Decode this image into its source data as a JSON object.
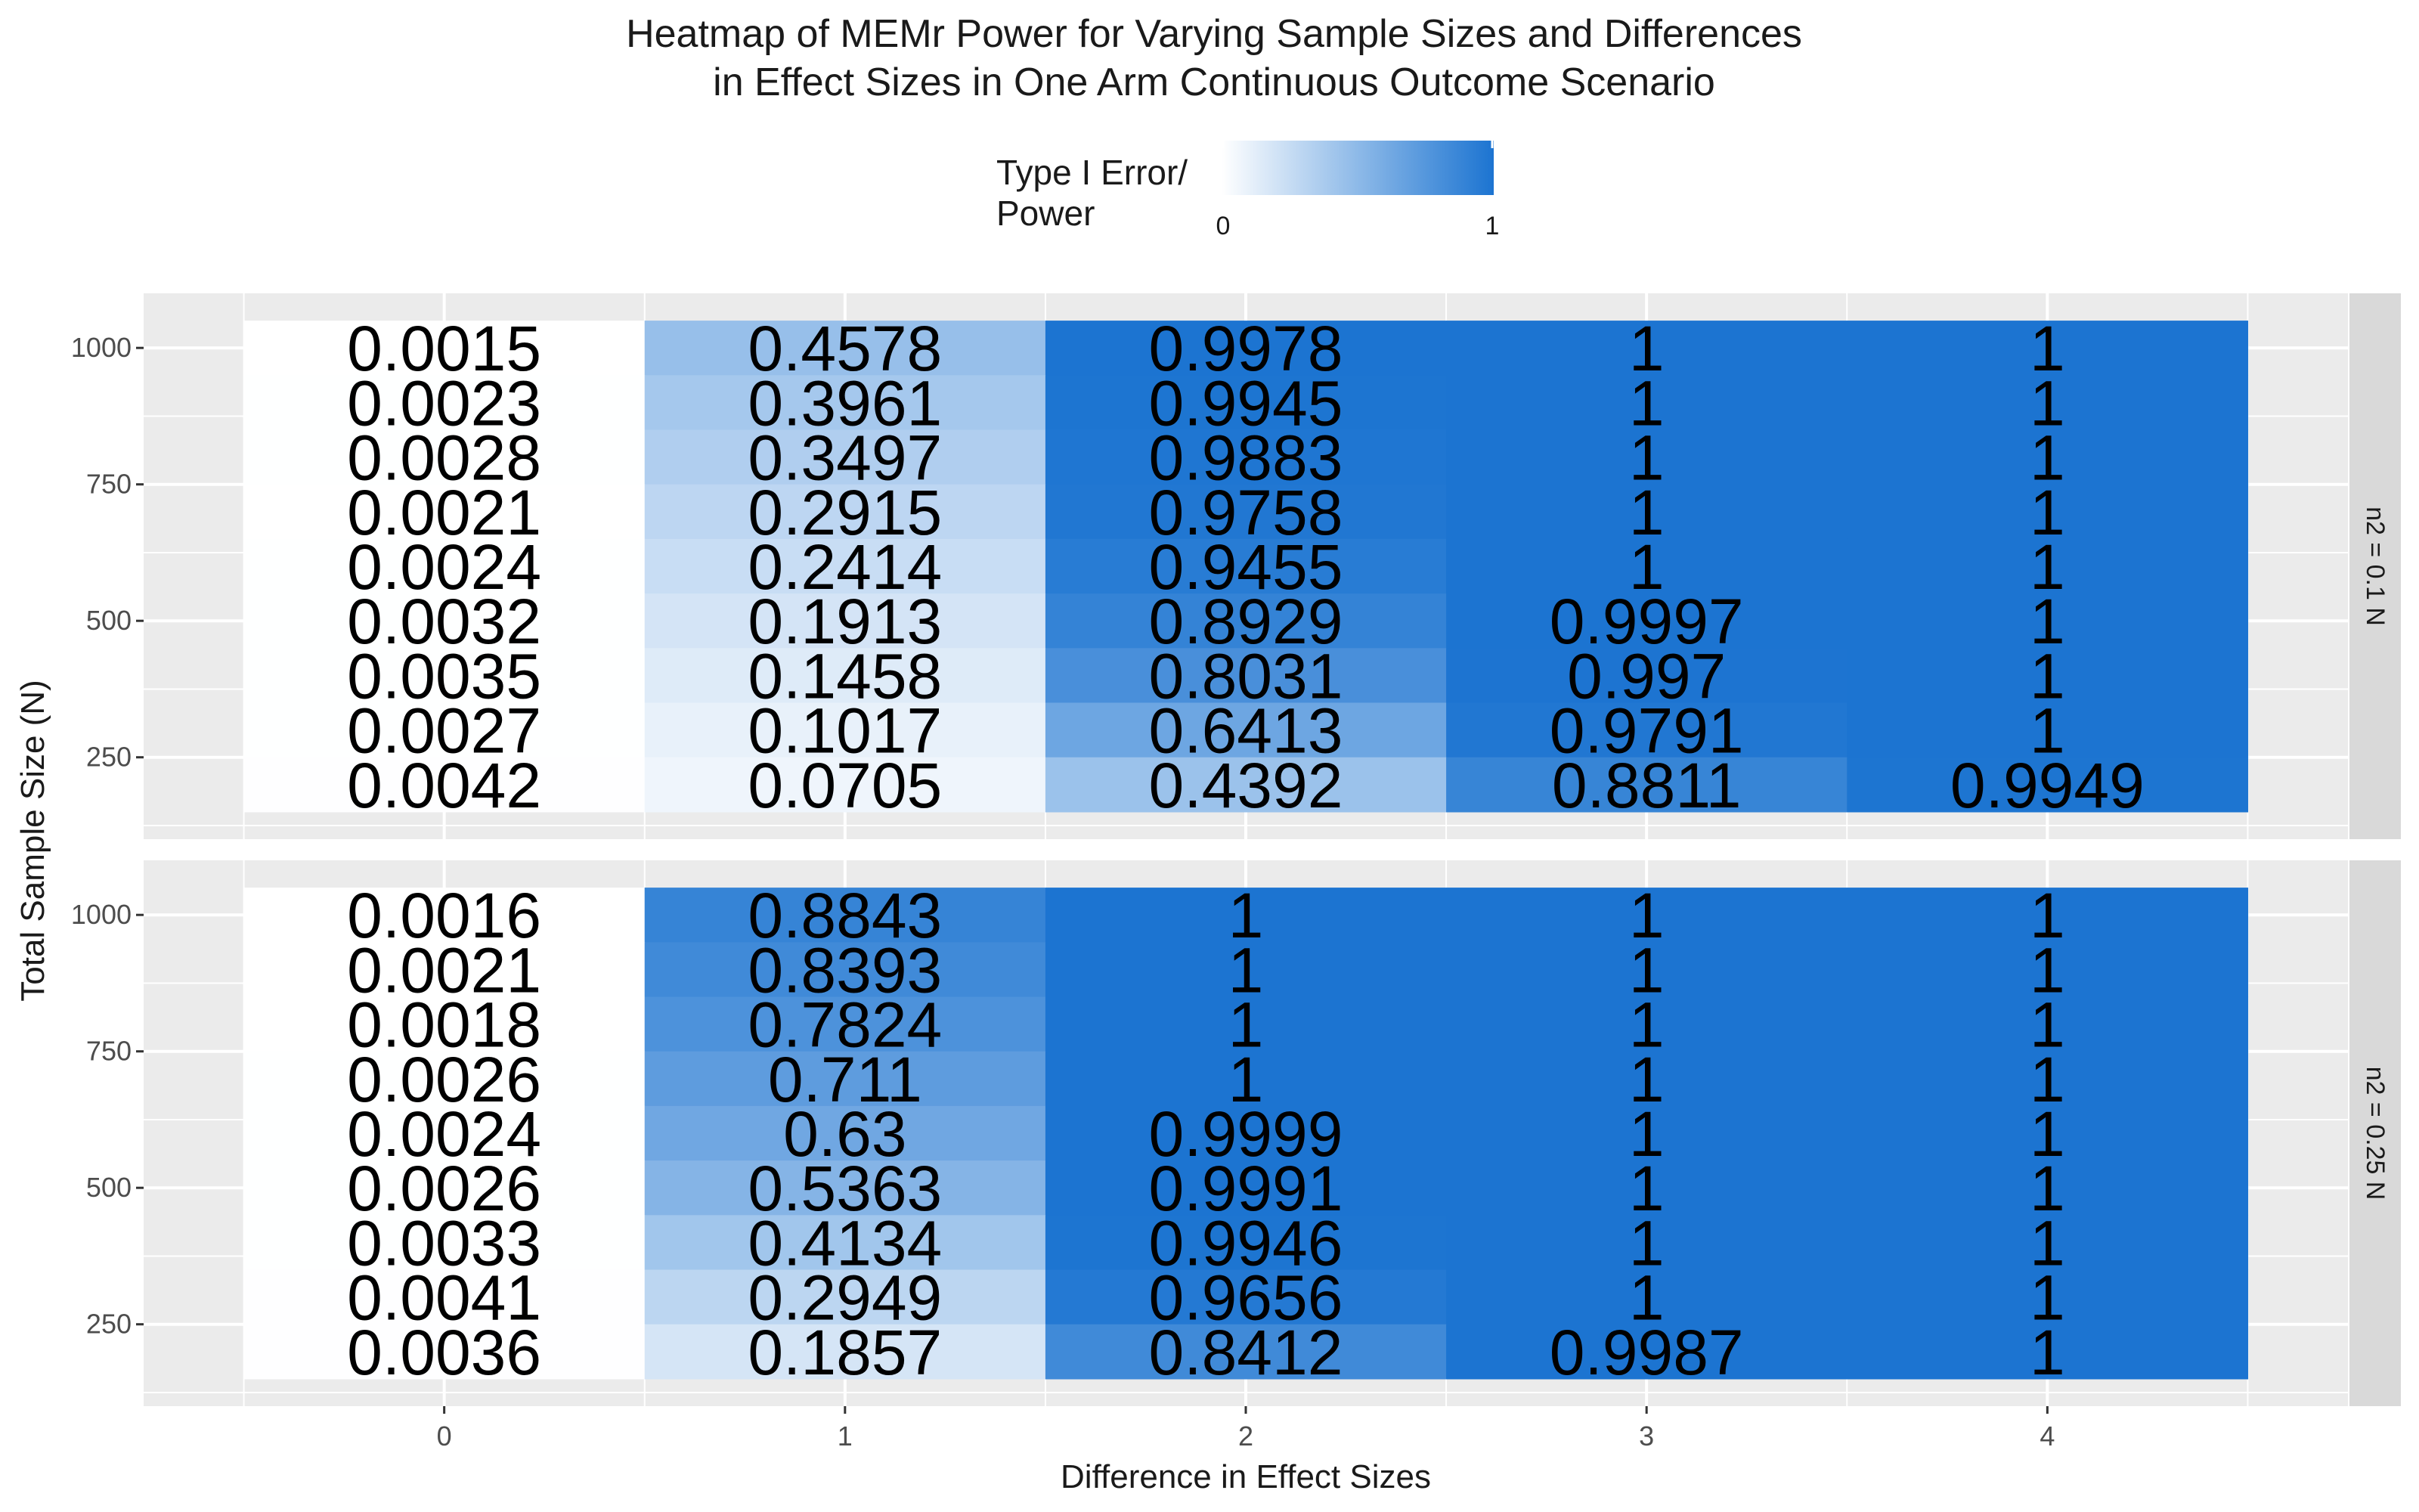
{
  "title": {
    "line1": "Heatmap of MEMr Power for Varying Sample Sizes and Differences",
    "line2": "in Effect Sizes in One Arm Continuous Outcome Scenario"
  },
  "legend": {
    "title_line1": "Type I Error/",
    "title_line2": "Power",
    "min_label": "0",
    "max_label": "1",
    "low_color": "#ffffff",
    "high_color": "#1c74d1"
  },
  "axes": {
    "xlabel": "Difference in Effect Sizes",
    "ylabel": "Total Sample Size (N)",
    "x_ticks": [
      "0",
      "1",
      "2",
      "3",
      "4"
    ],
    "y_ticks": [
      "250",
      "500",
      "750",
      "1000"
    ]
  },
  "colors": {
    "panel_bg": "#ebebeb",
    "grid": "#ffffff",
    "strip_bg": "#d9d9d9",
    "low": "#ffffff",
    "high": "#1c74d1"
  },
  "chart_data": {
    "type": "heatmap",
    "x": [
      0,
      1,
      2,
      3,
      4
    ],
    "y": [
      150,
      250,
      350,
      450,
      550,
      650,
      750,
      850,
      950,
      1050
    ],
    "xlabel": "Difference in Effect Sizes",
    "ylabel": "Total Sample Size (N)",
    "xlim": [
      -0.75,
      4.75
    ],
    "ylim": [
      100,
      1100
    ],
    "fill_range": [
      0,
      1
    ],
    "y_ticks": [
      250,
      500,
      750,
      1000
    ],
    "panels": [
      {
        "strip": "n2 = 0.1 N",
        "y_values": [
          1000,
          900,
          800,
          700,
          600,
          500,
          400,
          300,
          200
        ],
        "values": [
          [
            0.0015,
            0.4578,
            0.9978,
            1,
            1
          ],
          [
            0.0023,
            0.3961,
            0.9945,
            1,
            1
          ],
          [
            0.0028,
            0.3497,
            0.9883,
            1,
            1
          ],
          [
            0.0021,
            0.2915,
            0.9758,
            1,
            1
          ],
          [
            0.0024,
            0.2414,
            0.9455,
            1,
            1
          ],
          [
            0.0032,
            0.1913,
            0.8929,
            0.9997,
            1
          ],
          [
            0.0035,
            0.1458,
            0.8031,
            0.997,
            1
          ],
          [
            0.0027,
            0.1017,
            0.6413,
            0.9791,
            1
          ],
          [
            0.0042,
            0.0705,
            0.4392,
            0.8811,
            0.9949
          ]
        ],
        "labels": [
          [
            "0.0015",
            "0.4578",
            "0.9978",
            "1",
            "1"
          ],
          [
            "0.0023",
            "0.3961",
            "0.9945",
            "1",
            "1"
          ],
          [
            "0.0028",
            "0.3497",
            "0.9883",
            "1",
            "1"
          ],
          [
            "0.0021",
            "0.2915",
            "0.9758",
            "1",
            "1"
          ],
          [
            "0.0024",
            "0.2414",
            "0.9455",
            "1",
            "1"
          ],
          [
            "0.0032",
            "0.1913",
            "0.8929",
            "0.9997",
            "1"
          ],
          [
            "0.0035",
            "0.1458",
            "0.8031",
            "0.997",
            "1"
          ],
          [
            "0.0027",
            "0.1017",
            "0.6413",
            "0.9791",
            "1"
          ],
          [
            "0.0042",
            "0.0705",
            "0.4392",
            "0.8811",
            "0.9949"
          ]
        ]
      },
      {
        "strip": "n2 = 0.25 N",
        "y_values": [
          1000,
          900,
          800,
          700,
          600,
          500,
          400,
          300,
          200
        ],
        "values": [
          [
            0.0016,
            0.8843,
            1,
            1,
            1
          ],
          [
            0.0021,
            0.8393,
            1,
            1,
            1
          ],
          [
            0.0018,
            0.7824,
            1,
            1,
            1
          ],
          [
            0.0026,
            0.711,
            1,
            1,
            1
          ],
          [
            0.0024,
            0.63,
            0.9999,
            1,
            1
          ],
          [
            0.0026,
            0.5363,
            0.9991,
            1,
            1
          ],
          [
            0.0033,
            0.4134,
            0.9946,
            1,
            1
          ],
          [
            0.0041,
            0.2949,
            0.9656,
            1,
            1
          ],
          [
            0.0036,
            0.1857,
            0.8412,
            0.9987,
            1
          ]
        ],
        "labels": [
          [
            "0.0016",
            "0.8843",
            "1",
            "1",
            "1"
          ],
          [
            "0.0021",
            "0.8393",
            "1",
            "1",
            "1"
          ],
          [
            "0.0018",
            "0.7824",
            "1",
            "1",
            "1"
          ],
          [
            "0.0026",
            "0.711",
            "1",
            "1",
            "1"
          ],
          [
            "0.0024",
            "0.63",
            "0.9999",
            "1",
            "1"
          ],
          [
            "0.0026",
            "0.5363",
            "0.9991",
            "1",
            "1"
          ],
          [
            "0.0033",
            "0.4134",
            "0.9946",
            "1",
            "1"
          ],
          [
            "0.0041",
            "0.2949",
            "0.9656",
            "1",
            "1"
          ],
          [
            "0.0036",
            "0.1857",
            "0.8412",
            "0.9987",
            "1"
          ]
        ]
      }
    ]
  }
}
